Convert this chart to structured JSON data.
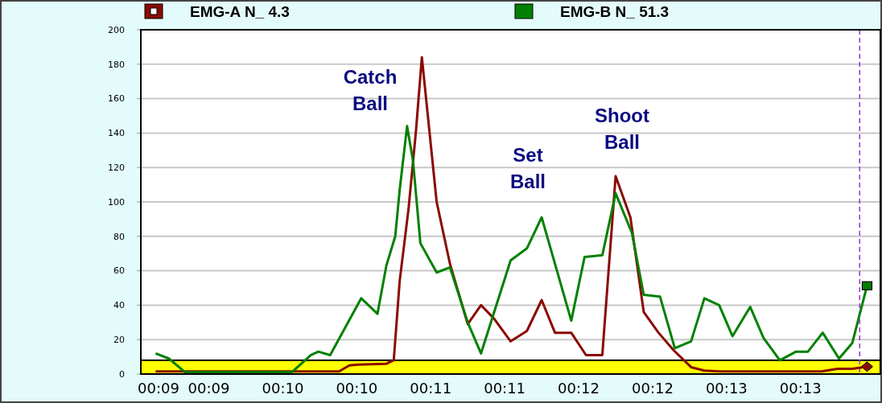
{
  "chart_data": {
    "type": "line",
    "legend": "top",
    "grid": "y",
    "line_style": "solid",
    "xlim": [
      9.04,
      14.04
    ],
    "xticks": [
      {
        "value": 9.16,
        "label": "00:09"
      },
      {
        "value": 9.5,
        "label": "00:09"
      },
      {
        "value": 10.0,
        "label": "00:10"
      },
      {
        "value": 10.5,
        "label": "00:10"
      },
      {
        "value": 11.0,
        "label": "00:11"
      },
      {
        "value": 11.5,
        "label": "00:11"
      },
      {
        "value": 12.0,
        "label": "00:12"
      },
      {
        "value": 12.5,
        "label": "00:12"
      },
      {
        "value": 13.0,
        "label": "00:13"
      },
      {
        "value": 13.5,
        "label": "00:13"
      }
    ],
    "ylim": [
      0,
      200
    ],
    "yticks": [
      0,
      20,
      40,
      60,
      80,
      100,
      120,
      140,
      160,
      180,
      200
    ],
    "series": [
      {
        "name": "EMG-A N_ 4.3",
        "color": "#8b0a00",
        "x": [
          9.14,
          10.38,
          10.45,
          10.51,
          10.7,
          10.75,
          10.79,
          10.85,
          10.9,
          10.94,
          11.04,
          11.13,
          11.25,
          11.34,
          11.43,
          11.54,
          11.65,
          11.75,
          11.84,
          11.95,
          12.05,
          12.16,
          12.25,
          12.35,
          12.44,
          12.54,
          12.64,
          12.76,
          12.85,
          12.96,
          13.64,
          13.75,
          13.85,
          13.95
        ],
        "values": [
          1.5,
          1.5,
          5,
          5.5,
          6,
          8,
          54,
          96,
          141,
          184,
          100,
          64,
          29,
          40,
          32,
          19,
          25,
          43,
          24,
          24,
          11,
          11,
          115,
          91,
          36,
          24,
          14,
          4,
          2,
          1.5,
          1.5,
          3,
          3,
          4.3
        ]
      },
      {
        "name": "EMG-B N_ 51.3",
        "color": "#008000",
        "x": [
          9.14,
          9.23,
          9.34,
          10.06,
          10.19,
          10.24,
          10.32,
          10.53,
          10.64,
          10.7,
          10.76,
          10.79,
          10.84,
          10.88,
          10.93,
          11.04,
          11.13,
          11.25,
          11.34,
          11.54,
          11.65,
          11.75,
          11.85,
          11.95,
          12.04,
          12.16,
          12.25,
          12.36,
          12.44,
          12.55,
          12.65,
          12.76,
          12.85,
          12.95,
          13.04,
          13.16,
          13.25,
          13.36,
          13.47,
          13.55,
          13.65,
          13.76,
          13.85,
          13.95
        ],
        "values": [
          12,
          9,
          1,
          1,
          11,
          13,
          11,
          44,
          35,
          63,
          80,
          107,
          144,
          124,
          76,
          59,
          62,
          30,
          12,
          66,
          73,
          91,
          61,
          31,
          68,
          69,
          105,
          82,
          46,
          45,
          15,
          19,
          44,
          40,
          22,
          39,
          21,
          8,
          13,
          13,
          24,
          9,
          18,
          51.3
        ]
      }
    ],
    "bands": [
      {
        "axis": "y",
        "from": 0,
        "to": 8,
        "color": "#ffff00"
      }
    ],
    "ref_lines": [
      {
        "axis": "x",
        "value": 13.9,
        "color": "#9933cc",
        "line_style": "dashed"
      }
    ],
    "annotations": [
      "Catch Ball",
      "Set Ball",
      "Shoot Ball"
    ]
  }
}
